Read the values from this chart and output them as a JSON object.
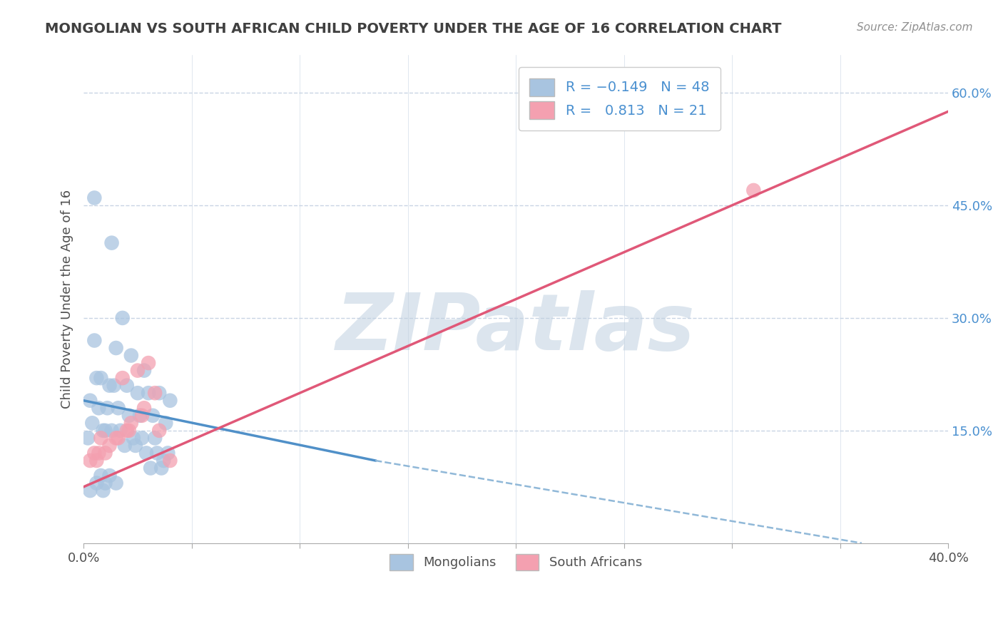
{
  "title": "MONGOLIAN VS SOUTH AFRICAN CHILD POVERTY UNDER THE AGE OF 16 CORRELATION CHART",
  "source": "Source: ZipAtlas.com",
  "ylabel": "Child Poverty Under the Age of 16",
  "xlim": [
    0.0,
    0.4
  ],
  "ylim": [
    0.0,
    0.65
  ],
  "xticks": [
    0.0,
    0.05,
    0.1,
    0.15,
    0.2,
    0.25,
    0.3,
    0.35,
    0.4
  ],
  "xtick_labels": [
    "0.0%",
    "",
    "",
    "",
    "",
    "",
    "",
    "",
    "40.0%"
  ],
  "yticks_right": [
    0.15,
    0.3,
    0.45,
    0.6
  ],
  "ytick_labels_right": [
    "15.0%",
    "30.0%",
    "45.0%",
    "60.0%"
  ],
  "mongolian_R": -0.149,
  "mongolian_N": 48,
  "south_african_R": 0.813,
  "south_african_N": 21,
  "mongolian_color": "#a8c4e0",
  "south_african_color": "#f4a0b0",
  "mongolian_line_color": "#5090c8",
  "south_african_line_color": "#e05878",
  "dashed_line_color": "#90b8d8",
  "background_color": "#ffffff",
  "grid_color": "#c8d4e4",
  "watermark_color": "#c0d0e0",
  "watermark_text": "ZIPatlas",
  "title_color": "#404040",
  "source_color": "#909090",
  "mongolian_scatter_x": [
    0.002,
    0.003,
    0.004,
    0.005,
    0.006,
    0.007,
    0.008,
    0.009,
    0.01,
    0.011,
    0.012,
    0.013,
    0.014,
    0.015,
    0.016,
    0.017,
    0.018,
    0.019,
    0.02,
    0.021,
    0.022,
    0.023,
    0.024,
    0.025,
    0.026,
    0.027,
    0.028,
    0.029,
    0.03,
    0.031,
    0.032,
    0.033,
    0.034,
    0.035,
    0.036,
    0.037,
    0.038,
    0.039,
    0.04,
    0.005,
    0.008,
    0.01,
    0.012,
    0.015,
    0.003,
    0.006,
    0.009,
    0.013
  ],
  "mongolian_scatter_y": [
    0.14,
    0.19,
    0.16,
    0.46,
    0.22,
    0.18,
    0.22,
    0.15,
    0.15,
    0.18,
    0.21,
    0.15,
    0.21,
    0.26,
    0.18,
    0.15,
    0.3,
    0.13,
    0.21,
    0.17,
    0.25,
    0.14,
    0.13,
    0.2,
    0.17,
    0.14,
    0.23,
    0.12,
    0.2,
    0.1,
    0.17,
    0.14,
    0.12,
    0.2,
    0.1,
    0.11,
    0.16,
    0.12,
    0.19,
    0.27,
    0.09,
    0.08,
    0.09,
    0.08,
    0.07,
    0.08,
    0.07,
    0.4
  ],
  "south_african_scatter_x": [
    0.003,
    0.005,
    0.006,
    0.007,
    0.008,
    0.01,
    0.012,
    0.015,
    0.016,
    0.018,
    0.02,
    0.021,
    0.022,
    0.025,
    0.027,
    0.028,
    0.03,
    0.033,
    0.035,
    0.04,
    0.31
  ],
  "south_african_scatter_y": [
    0.11,
    0.12,
    0.11,
    0.12,
    0.14,
    0.12,
    0.13,
    0.14,
    0.14,
    0.22,
    0.15,
    0.15,
    0.16,
    0.23,
    0.17,
    0.18,
    0.24,
    0.2,
    0.15,
    0.11,
    0.47
  ],
  "mongolian_trend_x": [
    0.0,
    0.135
  ],
  "mongolian_trend_y": [
    0.19,
    0.11
  ],
  "dashed_trend_x": [
    0.135,
    0.36
  ],
  "dashed_trend_y": [
    0.11,
    0.0
  ],
  "south_african_trend_x": [
    0.0,
    0.4
  ],
  "south_african_trend_y": [
    0.075,
    0.575
  ]
}
